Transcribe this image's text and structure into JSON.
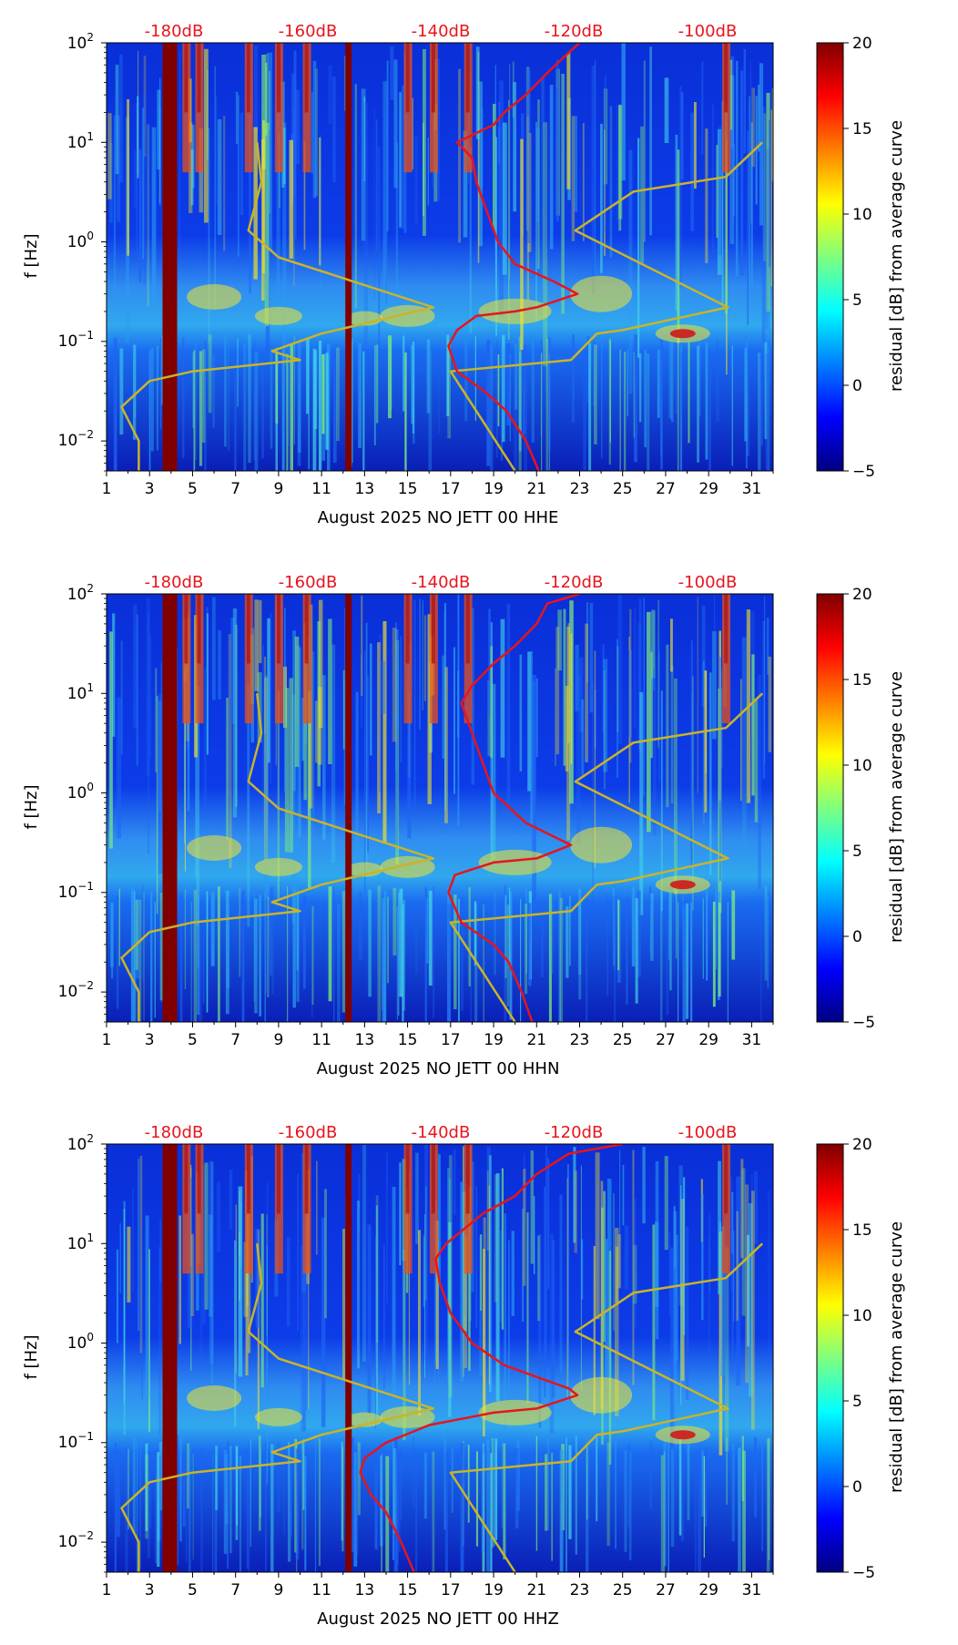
{
  "colors": {
    "db_label": "#e8141c",
    "psd_curve": "#e8141c",
    "model_curve": "#c8b42a",
    "colormap": [
      "#00007f",
      "#0000ff",
      "#007fff",
      "#00ffff",
      "#7fff7f",
      "#ffff00",
      "#ff7f00",
      "#ff0000",
      "#7f0000"
    ]
  },
  "chart_data": [
    {
      "type": "heatmap",
      "xlabel": "August 2025 NO JETT 00 HHE",
      "ylabel": "f [Hz]",
      "xticks": [
        1,
        3,
        5,
        7,
        9,
        11,
        13,
        15,
        17,
        19,
        21,
        23,
        25,
        27,
        29,
        31
      ],
      "xlim": [
        1,
        32
      ],
      "ylim": [
        0.005,
        100
      ],
      "yticks": [
        "10^2",
        "10^1",
        "10^0",
        "10^-1",
        "10^-2"
      ],
      "top_axis_labels": [
        "-180dB",
        "-160dB",
        "-140dB",
        "-120dB",
        "-100dB"
      ],
      "colorbar": {
        "label": "residual [dB] from average curve",
        "ticks": [
          20,
          15,
          10,
          5,
          0,
          -5
        ],
        "range": [
          -5,
          20
        ]
      },
      "psd_curve": [
        [
          100,
          23.0
        ],
        [
          80,
          22.5
        ],
        [
          50,
          21.5
        ],
        [
          30,
          20.5
        ],
        [
          20,
          19.5
        ],
        [
          15,
          19.0
        ],
        [
          10,
          17.3
        ],
        [
          7,
          18.0
        ],
        [
          4,
          18.2
        ],
        [
          2,
          18.7
        ],
        [
          1,
          19.2
        ],
        [
          0.6,
          20.0
        ],
        [
          0.4,
          21.8
        ],
        [
          0.3,
          22.9
        ],
        [
          0.22,
          21.0
        ],
        [
          0.2,
          20.0
        ],
        [
          0.18,
          18.2
        ],
        [
          0.13,
          17.3
        ],
        [
          0.09,
          16.9
        ],
        [
          0.05,
          17.3
        ],
        [
          0.03,
          18.7
        ],
        [
          0.02,
          19.6
        ],
        [
          0.01,
          20.5
        ],
        [
          0.005,
          21.1
        ]
      ],
      "model_curve": [
        [
          10,
          31.5
        ],
        [
          4.5,
          29.8
        ],
        [
          3.2,
          25.5
        ],
        [
          1.3,
          22.8
        ],
        [
          0.22,
          29.9
        ],
        [
          0.13,
          25.0
        ],
        [
          0.12,
          23.8
        ],
        [
          0.065,
          22.6
        ],
        [
          0.05,
          17.0
        ],
        [
          0.005,
          20.0
        ]
      ],
      "low_noise_model": [
        [
          10,
          8.0
        ],
        [
          4,
          8.2
        ],
        [
          1.3,
          7.6
        ],
        [
          0.7,
          9.0
        ],
        [
          0.22,
          16.2
        ],
        [
          0.12,
          11.0
        ],
        [
          0.08,
          8.7
        ],
        [
          0.065,
          10.0
        ],
        [
          0.05,
          5.0
        ],
        [
          0.04,
          3.0
        ],
        [
          0.022,
          1.7
        ],
        [
          0.01,
          2.5
        ],
        [
          0.005,
          2.5
        ]
      ],
      "hot_bands": [
        3.9,
        12.4
      ]
    },
    {
      "type": "heatmap",
      "xlabel": "August 2025 NO JETT 00 HHN",
      "ylabel": "f [Hz]",
      "xticks": [
        1,
        3,
        5,
        7,
        9,
        11,
        13,
        15,
        17,
        19,
        21,
        23,
        25,
        27,
        29,
        31
      ],
      "xlim": [
        1,
        32
      ],
      "ylim": [
        0.005,
        100
      ],
      "yticks": [
        "10^2",
        "10^1",
        "10^0",
        "10^-1",
        "10^-2"
      ],
      "top_axis_labels": [
        "-180dB",
        "-160dB",
        "-140dB",
        "-120dB",
        "-100dB"
      ],
      "colorbar": {
        "label": "residual [dB] from average curve",
        "ticks": [
          20,
          15,
          10,
          5,
          0,
          -5
        ],
        "range": [
          -5,
          20
        ]
      },
      "psd_curve": [
        [
          100,
          23.0
        ],
        [
          80,
          21.5
        ],
        [
          50,
          21.0
        ],
        [
          30,
          20.0
        ],
        [
          20,
          19.0
        ],
        [
          12,
          18.0
        ],
        [
          8,
          17.5
        ],
        [
          4,
          18.0
        ],
        [
          2,
          18.5
        ],
        [
          1,
          19.0
        ],
        [
          0.5,
          20.5
        ],
        [
          0.3,
          22.6
        ],
        [
          0.22,
          21.0
        ],
        [
          0.2,
          19.0
        ],
        [
          0.15,
          17.2
        ],
        [
          0.1,
          16.9
        ],
        [
          0.05,
          17.5
        ],
        [
          0.03,
          19.0
        ],
        [
          0.02,
          19.7
        ],
        [
          0.01,
          20.3
        ],
        [
          0.005,
          20.8
        ]
      ],
      "model_curve": [
        [
          10,
          31.5
        ],
        [
          4.5,
          29.8
        ],
        [
          3.2,
          25.5
        ],
        [
          1.3,
          22.8
        ],
        [
          0.22,
          29.9
        ],
        [
          0.13,
          25.0
        ],
        [
          0.12,
          23.8
        ],
        [
          0.065,
          22.6
        ],
        [
          0.05,
          17.0
        ],
        [
          0.005,
          20.0
        ]
      ],
      "low_noise_model": [
        [
          10,
          8.0
        ],
        [
          4,
          8.2
        ],
        [
          1.3,
          7.6
        ],
        [
          0.7,
          9.0
        ],
        [
          0.22,
          16.2
        ],
        [
          0.12,
          11.0
        ],
        [
          0.08,
          8.7
        ],
        [
          0.065,
          10.0
        ],
        [
          0.05,
          5.0
        ],
        [
          0.04,
          3.0
        ],
        [
          0.022,
          1.7
        ],
        [
          0.01,
          2.5
        ],
        [
          0.005,
          2.5
        ]
      ],
      "hot_bands": [
        3.9,
        12.4
      ]
    },
    {
      "type": "heatmap",
      "xlabel": "August 2025 NO JETT 00 HHZ",
      "ylabel": "f [Hz]",
      "xticks": [
        1,
        3,
        5,
        7,
        9,
        11,
        13,
        15,
        17,
        19,
        21,
        23,
        25,
        27,
        29,
        31
      ],
      "xlim": [
        1,
        32
      ],
      "ylim": [
        0.005,
        100
      ],
      "yticks": [
        "10^2",
        "10^1",
        "10^0",
        "10^-1",
        "10^-2"
      ],
      "top_axis_labels": [
        "-180dB",
        "-160dB",
        "-140dB",
        "-120dB",
        "-100dB"
      ],
      "colorbar": {
        "label": "residual [dB] from average curve",
        "ticks": [
          20,
          15,
          10,
          5,
          0,
          -5
        ],
        "range": [
          -5,
          20
        ]
      },
      "psd_curve": [
        [
          100,
          25.0
        ],
        [
          80,
          22.5
        ],
        [
          50,
          21.0
        ],
        [
          30,
          20.0
        ],
        [
          20,
          18.5
        ],
        [
          10,
          16.8
        ],
        [
          7,
          16.3
        ],
        [
          4,
          16.5
        ],
        [
          2,
          17.0
        ],
        [
          1,
          18.0
        ],
        [
          0.6,
          19.5
        ],
        [
          0.35,
          22.5
        ],
        [
          0.3,
          22.9
        ],
        [
          0.22,
          21.0
        ],
        [
          0.2,
          19.0
        ],
        [
          0.15,
          16.0
        ],
        [
          0.1,
          14.0
        ],
        [
          0.07,
          13.0
        ],
        [
          0.05,
          12.8
        ],
        [
          0.03,
          13.3
        ],
        [
          0.02,
          14.0
        ],
        [
          0.01,
          14.7
        ],
        [
          0.005,
          15.3
        ]
      ],
      "model_curve": [
        [
          10,
          31.5
        ],
        [
          4.5,
          29.8
        ],
        [
          3.2,
          25.5
        ],
        [
          1.3,
          22.8
        ],
        [
          0.22,
          29.9
        ],
        [
          0.13,
          25.0
        ],
        [
          0.12,
          23.8
        ],
        [
          0.065,
          22.6
        ],
        [
          0.05,
          17.0
        ],
        [
          0.005,
          20.0
        ]
      ],
      "low_noise_model": [
        [
          10,
          8.0
        ],
        [
          4,
          8.2
        ],
        [
          1.3,
          7.6
        ],
        [
          0.7,
          9.0
        ],
        [
          0.22,
          16.2
        ],
        [
          0.12,
          11.0
        ],
        [
          0.08,
          8.7
        ],
        [
          0.065,
          10.0
        ],
        [
          0.05,
          5.0
        ],
        [
          0.04,
          3.0
        ],
        [
          0.022,
          1.7
        ],
        [
          0.01,
          2.5
        ],
        [
          0.005,
          2.5
        ]
      ],
      "hot_bands": [
        3.9,
        12.4
      ]
    }
  ]
}
